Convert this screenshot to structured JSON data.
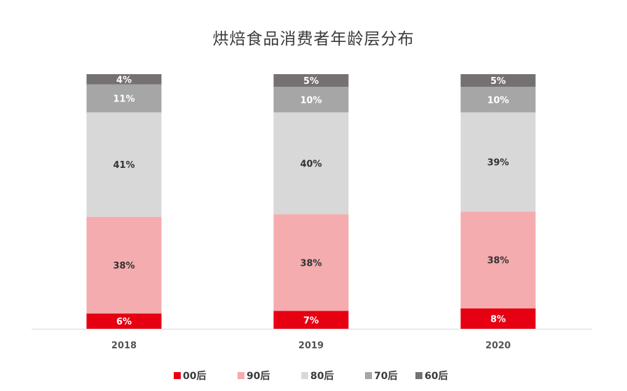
{
  "chart_data": {
    "type": "bar",
    "stacked": true,
    "title": "烘焙食品消费者年龄层分布",
    "categories": [
      "2018",
      "2019",
      "2020"
    ],
    "series": [
      {
        "name": "00后",
        "color": "#e60012",
        "values": [
          6,
          7,
          8
        ]
      },
      {
        "name": "90后",
        "color": "#f4acaf",
        "values": [
          38,
          38,
          38
        ]
      },
      {
        "name": "80后",
        "color": "#d9d8d8",
        "values": [
          41,
          40,
          39
        ]
      },
      {
        "name": "70后",
        "color": "#a6a6a6",
        "values": [
          11,
          10,
          10
        ]
      },
      {
        "name": "60后",
        "color": "#767171",
        "values": [
          4,
          5,
          5
        ]
      }
    ],
    "data_label_suffix": "%",
    "ylim": [
      0,
      100
    ],
    "legend_position": "bottom",
    "grid": false
  }
}
